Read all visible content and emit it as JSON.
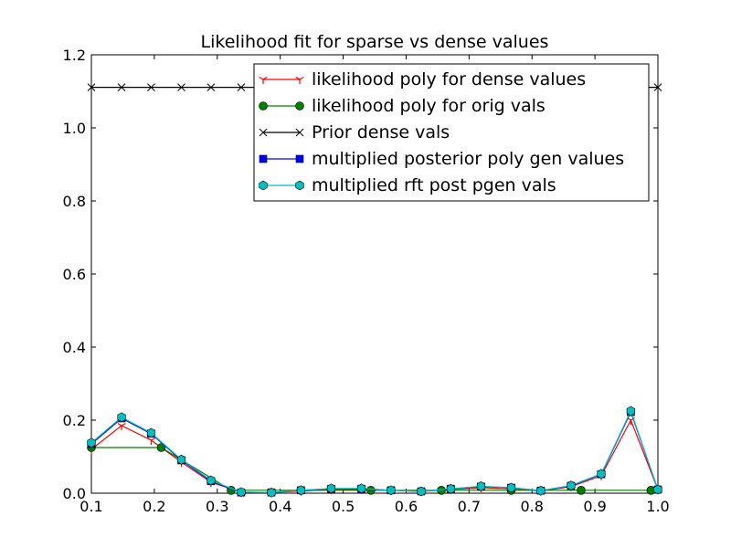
{
  "chart_data": {
    "type": "line",
    "title": "Likelihood fit for sparse vs dense values",
    "xlabel": "",
    "ylabel": "",
    "xlim": [
      0.1,
      1.0
    ],
    "ylim": [
      0.0,
      1.2
    ],
    "x_ticks": [
      "0.1",
      "0.2",
      "0.3",
      "0.4",
      "0.5",
      "0.6",
      "0.7",
      "0.8",
      "0.9",
      "1.0"
    ],
    "y_ticks": [
      "0.0",
      "0.2",
      "0.4",
      "0.6",
      "0.8",
      "1.0",
      "1.2"
    ],
    "grid": false,
    "legend_position": "top-right",
    "series": [
      {
        "name": "likelihood poly for dense values",
        "color": "#ff0000",
        "marker": "tri_down",
        "x": [
          0.1,
          0.148,
          0.195,
          0.243,
          0.29,
          0.338,
          0.386,
          0.433,
          0.481,
          0.529,
          0.576,
          0.624,
          0.671,
          0.719,
          0.767,
          0.814,
          0.862,
          0.91,
          0.957,
          1.0
        ],
        "y": [
          0.12,
          0.185,
          0.145,
          0.085,
          0.03,
          0.003,
          0.002,
          0.006,
          0.01,
          0.01,
          0.008,
          0.005,
          0.01,
          0.015,
          0.012,
          0.006,
          0.018,
          0.048,
          0.2,
          0.01
        ]
      },
      {
        "name": "likelihood poly for orig vals",
        "color": "#008000",
        "marker": "circle",
        "x": [
          0.1,
          0.211,
          0.322,
          0.433,
          0.544,
          0.656,
          0.767,
          0.878,
          0.989
        ],
        "y": [
          0.125,
          0.125,
          0.008,
          0.008,
          0.008,
          0.008,
          0.008,
          0.008,
          0.008
        ]
      },
      {
        "name": "Prior dense vals",
        "color": "#000000",
        "marker": "x",
        "x": [
          0.1,
          0.148,
          0.195,
          0.243,
          0.29,
          0.338,
          0.386,
          0.433,
          0.481,
          0.529,
          0.576,
          0.624,
          0.671,
          0.719,
          0.767,
          0.814,
          0.862,
          0.91,
          0.957,
          1.0
        ],
        "y": [
          1.111,
          1.111,
          1.111,
          1.111,
          1.111,
          1.111,
          1.111,
          1.111,
          1.111,
          1.111,
          1.111,
          1.111,
          1.111,
          1.111,
          1.111,
          1.111,
          1.111,
          1.111,
          1.111,
          1.111
        ]
      },
      {
        "name": "multiplied posterior poly gen values",
        "color": "#0000ff",
        "marker": "square",
        "x": [
          0.1,
          0.148,
          0.195,
          0.243,
          0.29,
          0.338,
          0.386,
          0.433,
          0.481,
          0.529,
          0.576,
          0.624,
          0.671,
          0.719,
          0.767,
          0.814,
          0.862,
          0.91,
          0.957,
          1.0
        ],
        "y": [
          0.135,
          0.205,
          0.163,
          0.09,
          0.033,
          0.002,
          0.002,
          0.008,
          0.012,
          0.012,
          0.008,
          0.005,
          0.012,
          0.018,
          0.015,
          0.007,
          0.02,
          0.052,
          0.222,
          0.01
        ]
      },
      {
        "name": "multiplied rft post pgen vals",
        "color": "#00bfbf",
        "marker": "hexagon",
        "x": [
          0.1,
          0.148,
          0.195,
          0.243,
          0.29,
          0.338,
          0.386,
          0.433,
          0.481,
          0.529,
          0.576,
          0.624,
          0.671,
          0.719,
          0.767,
          0.814,
          0.862,
          0.91,
          0.957,
          1.0
        ],
        "y": [
          0.138,
          0.208,
          0.165,
          0.092,
          0.035,
          0.003,
          0.002,
          0.008,
          0.013,
          0.013,
          0.008,
          0.005,
          0.012,
          0.019,
          0.015,
          0.007,
          0.021,
          0.053,
          0.225,
          0.01
        ]
      }
    ]
  }
}
